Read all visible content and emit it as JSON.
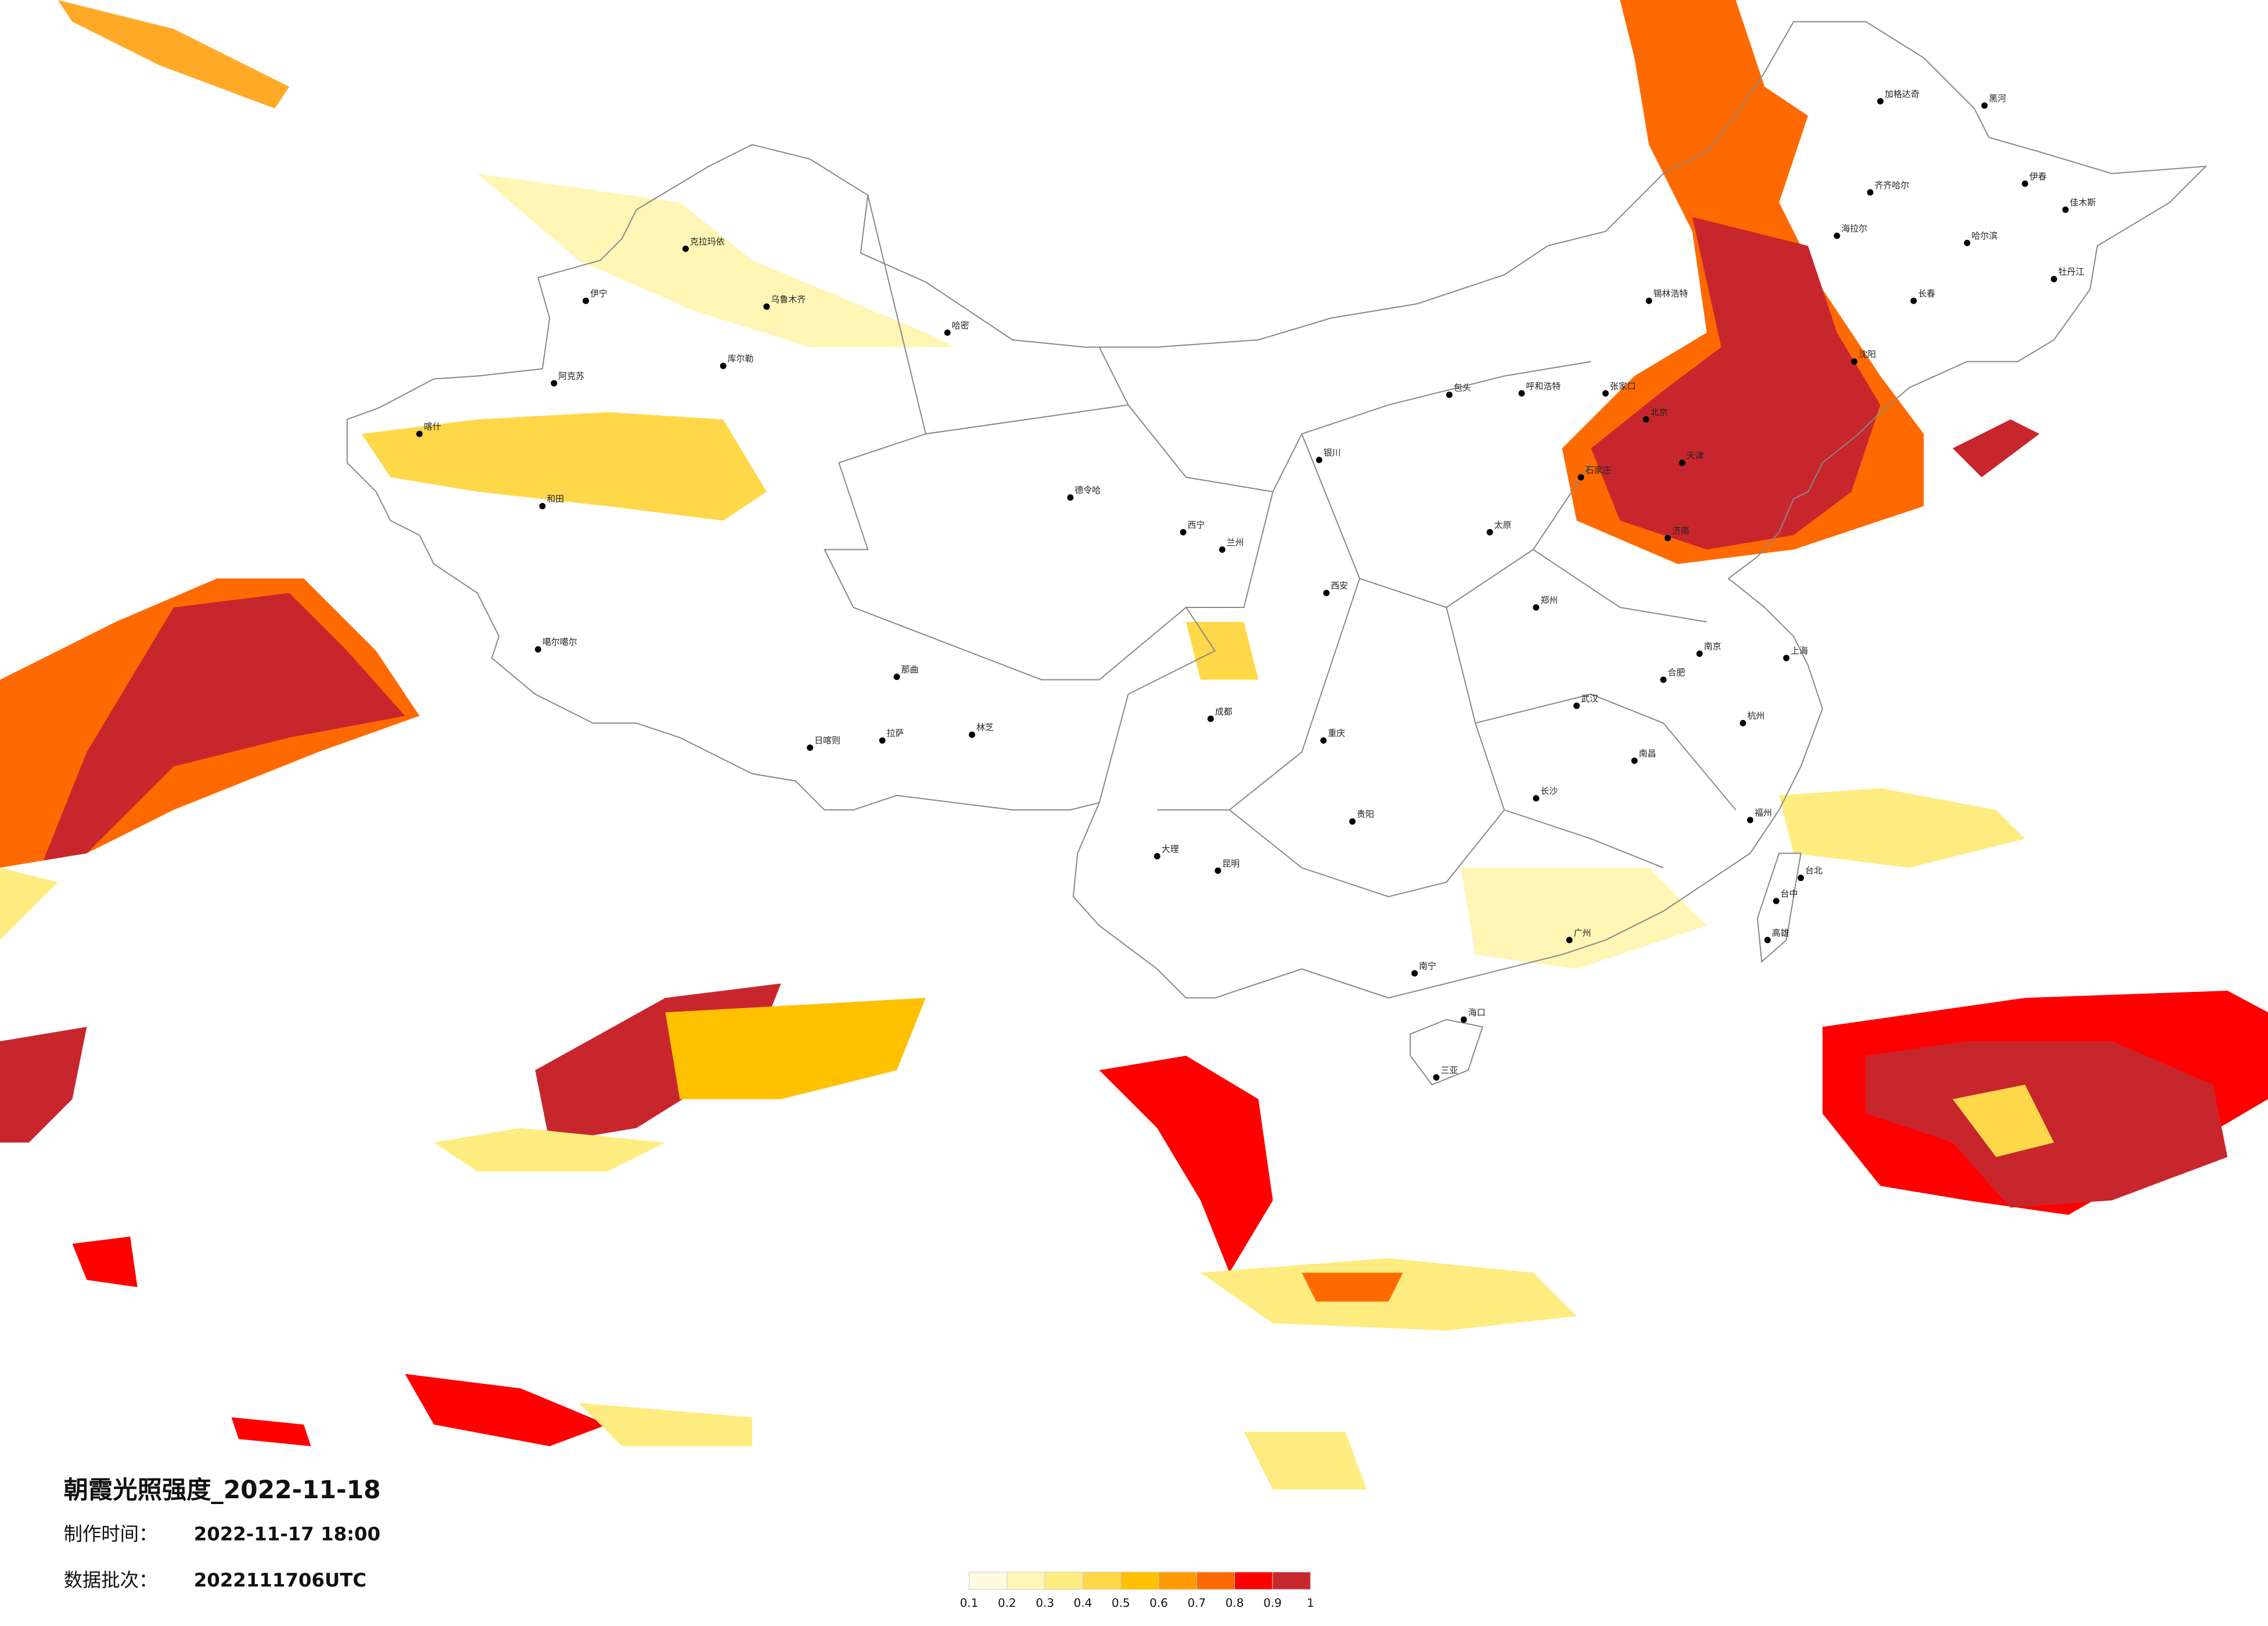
{
  "header": {
    "title": "朝霞光照强度_2022-11-18",
    "made_label": "制作时间：",
    "made_value": "2022-11-17 18:00",
    "batch_label": "数据批次：",
    "batch_value": "2022111706UTC"
  },
  "legend": {
    "ticks": [
      0.1,
      0.2,
      0.3,
      0.4,
      0.5,
      0.6,
      0.7,
      0.8,
      0.9,
      1
    ],
    "colors": [
      "#fffbe0",
      "#fff5b5",
      "#ffec80",
      "#ffd84a",
      "#ffc000",
      "#ff9a00",
      "#ff6a00",
      "#ff0000",
      "#c8262d"
    ]
  },
  "cities": [
    "克拉玛依",
    "伊宁",
    "乌鲁木齐",
    "阿克苏",
    "库尔勒",
    "喀什",
    "和田",
    "哈密",
    "噶尔噶尔",
    "日喀则",
    "拉萨",
    "林芝",
    "那曲",
    "德令哈",
    "西宁",
    "兰州",
    "银川",
    "呼和浩特",
    "包头",
    "北京",
    "天津",
    "石家庄",
    "太原",
    "济南",
    "郑州",
    "西安",
    "成都",
    "重庆",
    "武汉",
    "长沙",
    "南昌",
    "杭州",
    "南京",
    "上海",
    "合肥",
    "福州",
    "台北",
    "台中",
    "高雄",
    "广州",
    "南宁",
    "海口",
    "三亚",
    "昆明",
    "贵阳",
    "哈尔滨",
    "长春",
    "沈阳",
    "齐齐哈尔",
    "加格达奇",
    "黑河",
    "伊春",
    "佳木斯",
    "牡丹江",
    "海拉尔",
    "锡林浩特",
    "张家口",
    "大理"
  ]
}
